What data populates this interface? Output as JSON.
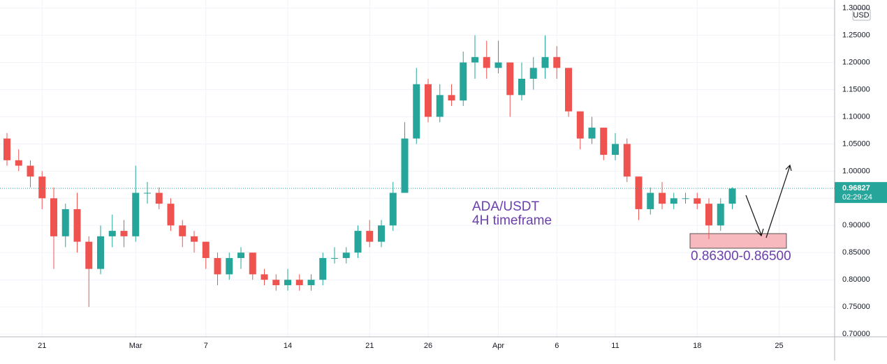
{
  "chart_data": {
    "type": "candlestick",
    "currency": "USD",
    "annotations": [
      "ADA/USDT",
      "4H timeframe",
      "0.86300-0.86500"
    ],
    "last_price": 0.96827,
    "countdown": "02:29:24",
    "up_color": "#26a69a",
    "down_color": "#ef5350",
    "categories": [
      null,
      null,
      null,
      "21",
      null,
      null,
      null,
      null,
      null,
      null,
      null,
      "Mar",
      null,
      null,
      null,
      null,
      null,
      "7",
      null,
      null,
      null,
      null,
      null,
      null,
      "14",
      null,
      null,
      null,
      null,
      null,
      null,
      "21",
      null,
      null,
      null,
      null,
      "26",
      null,
      null,
      null,
      null,
      null,
      "Apr",
      null,
      null,
      null,
      null,
      "6",
      null,
      null,
      null,
      null,
      "11",
      null,
      null,
      null,
      null,
      null,
      null,
      "18",
      null,
      null,
      null,
      null,
      null,
      null,
      "25"
    ],
    "open": [
      1.06,
      1.02,
      1.01,
      0.99,
      0.95,
      0.88,
      0.93,
      0.87,
      0.82,
      0.88,
      0.89,
      0.88,
      0.96,
      0.96,
      0.94,
      0.9,
      0.88,
      0.87,
      0.84,
      0.81,
      0.84,
      0.85,
      0.81,
      0.8,
      0.79,
      0.8,
      0.79,
      0.8,
      0.84,
      0.84,
      0.85,
      0.89,
      0.87,
      0.9,
      0.96,
      1.06,
      1.16,
      1.1,
      1.14,
      1.13,
      1.2,
      1.21,
      1.19,
      1.2,
      1.14,
      1.17,
      1.19,
      1.21,
      1.19,
      1.11,
      1.06,
      1.08,
      1.03,
      1.05,
      0.99,
      0.93,
      0.96,
      0.94,
      0.95,
      0.95,
      0.94,
      0.9,
      0.94,
      null,
      null,
      null,
      null
    ],
    "high": [
      1.07,
      1.04,
      1.02,
      1.0,
      0.97,
      0.94,
      0.96,
      0.88,
      0.9,
      0.92,
      0.91,
      1.01,
      0.98,
      0.97,
      0.95,
      0.91,
      0.89,
      0.87,
      0.85,
      0.85,
      0.86,
      0.85,
      0.82,
      0.81,
      0.82,
      0.81,
      0.81,
      0.85,
      0.86,
      0.86,
      0.9,
      0.91,
      0.91,
      0.98,
      1.09,
      1.19,
      1.17,
      1.16,
      1.16,
      1.22,
      1.25,
      1.24,
      1.24,
      1.2,
      1.2,
      1.21,
      1.25,
      1.23,
      1.19,
      1.11,
      1.1,
      1.08,
      1.07,
      1.06,
      0.99,
      0.97,
      0.98,
      0.96,
      0.96,
      0.96,
      0.95,
      0.95,
      0.97,
      null,
      null,
      null,
      null
    ],
    "low": [
      1.01,
      1.0,
      0.97,
      0.93,
      0.82,
      0.86,
      0.85,
      0.75,
      0.81,
      0.86,
      0.86,
      0.87,
      0.94,
      0.93,
      0.89,
      0.86,
      0.85,
      0.82,
      0.79,
      0.8,
      0.82,
      0.8,
      0.79,
      0.78,
      0.78,
      0.78,
      0.78,
      0.79,
      0.83,
      0.83,
      0.84,
      0.86,
      0.86,
      0.89,
      0.96,
      1.05,
      1.09,
      1.09,
      1.12,
      1.12,
      1.17,
      1.17,
      1.18,
      1.1,
      1.13,
      1.15,
      1.17,
      1.17,
      1.1,
      1.04,
      1.05,
      1.02,
      1.02,
      0.98,
      0.91,
      0.92,
      0.93,
      0.93,
      0.94,
      0.93,
      0.875,
      0.89,
      0.93,
      null,
      null,
      null,
      null
    ],
    "close": [
      1.02,
      1.01,
      0.99,
      0.95,
      0.88,
      0.93,
      0.87,
      0.82,
      0.88,
      0.89,
      0.88,
      0.96,
      0.96,
      0.94,
      0.9,
      0.88,
      0.87,
      0.84,
      0.81,
      0.84,
      0.85,
      0.81,
      0.8,
      0.79,
      0.8,
      0.79,
      0.8,
      0.84,
      0.84,
      0.85,
      0.89,
      0.87,
      0.9,
      0.96,
      1.06,
      1.16,
      1.1,
      1.14,
      1.13,
      1.2,
      1.21,
      1.19,
      1.2,
      1.14,
      1.17,
      1.19,
      1.21,
      1.19,
      1.11,
      1.06,
      1.08,
      1.03,
      1.05,
      0.99,
      0.93,
      0.96,
      0.94,
      0.95,
      0.95,
      0.94,
      0.9,
      0.94,
      0.968,
      null,
      null,
      null,
      null
    ],
    "ylim": [
      0.695,
      1.315
    ],
    "yticks": [
      {
        "value": 0.7,
        "label": "0.70000"
      },
      {
        "value": 0.75,
        "label": "0.75000"
      },
      {
        "value": 0.8,
        "label": "0.80000"
      },
      {
        "value": 0.85,
        "label": "0.85000"
      },
      {
        "value": 0.9,
        "label": "0.90000"
      },
      {
        "value": 0.95,
        "label": "0.95000"
      },
      {
        "value": 1.0,
        "label": "1.00000"
      },
      {
        "value": 1.05,
        "label": "1.05000"
      },
      {
        "value": 1.1,
        "label": "1.10000"
      },
      {
        "value": 1.15,
        "label": "1.15000"
      },
      {
        "value": 1.2,
        "label": "1.20000"
      },
      {
        "value": 1.25,
        "label": "1.25000"
      },
      {
        "value": 1.3,
        "label": "1.30000"
      }
    ],
    "grid": true
  }
}
